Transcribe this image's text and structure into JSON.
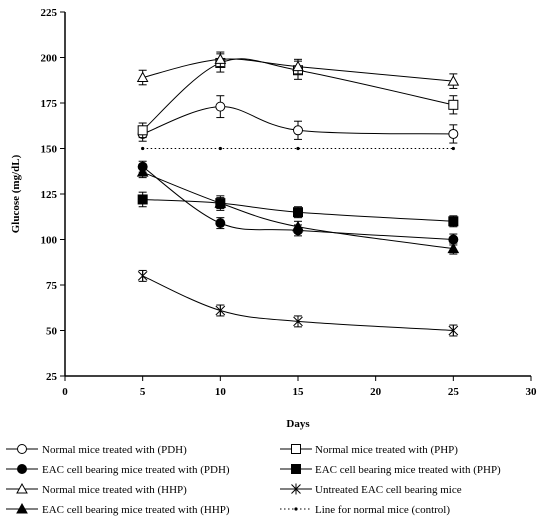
{
  "chart_data": {
    "type": "line",
    "xlabel": "Days",
    "ylabel": "Glucose (mg/dL)",
    "xlim": [
      0,
      30
    ],
    "ylim": [
      25,
      225
    ],
    "x_ticks": [
      "0",
      "5",
      "10",
      "15",
      "20",
      "25",
      "30"
    ],
    "y_ticks": [
      "25",
      "50",
      "75",
      "100",
      "125",
      "150",
      "175",
      "200",
      "225"
    ],
    "grid": false,
    "legend_position": "bottom",
    "x": [
      5,
      10,
      15,
      25
    ],
    "series": [
      {
        "name": "Normal mice treated with (PDH)",
        "marker": "circle-open",
        "values": [
          158,
          173,
          160,
          158
        ],
        "errors": [
          4,
          6,
          5,
          5
        ]
      },
      {
        "name": "Normal mice treated with (PHP)",
        "marker": "square-open",
        "values": [
          160,
          197,
          193,
          174
        ],
        "errors": [
          4,
          5,
          5,
          5
        ]
      },
      {
        "name": "EAC cell bearing mice treated with (PDH)",
        "marker": "circle-filled",
        "values": [
          140,
          109,
          105,
          100
        ],
        "errors": [
          3,
          3,
          3,
          3
        ]
      },
      {
        "name": "EAC cell bearing mice treated with (PHP)",
        "marker": "square-filled",
        "values": [
          122,
          120,
          115,
          110
        ],
        "errors": [
          4,
          4,
          3,
          3
        ]
      },
      {
        "name": "Normal mice treated with (HHP)",
        "marker": "triangle-open",
        "values": [
          189,
          199,
          195,
          187
        ],
        "errors": [
          4,
          4,
          4,
          4
        ]
      },
      {
        "name": "Untreated EAC cell bearing mice",
        "marker": "star",
        "values": [
          80,
          61,
          55,
          50
        ],
        "errors": [
          3,
          3,
          3,
          3
        ]
      },
      {
        "name": "EAC cell bearing mice treated with (HHP)",
        "marker": "triangle-filled",
        "values": [
          137,
          120,
          107,
          95
        ],
        "errors": [
          3,
          3,
          3,
          3
        ]
      },
      {
        "name": "Line for normal mice (control)",
        "marker": "dot",
        "style": "dotted",
        "values": [
          150,
          150,
          150,
          150
        ],
        "errors": []
      }
    ]
  }
}
